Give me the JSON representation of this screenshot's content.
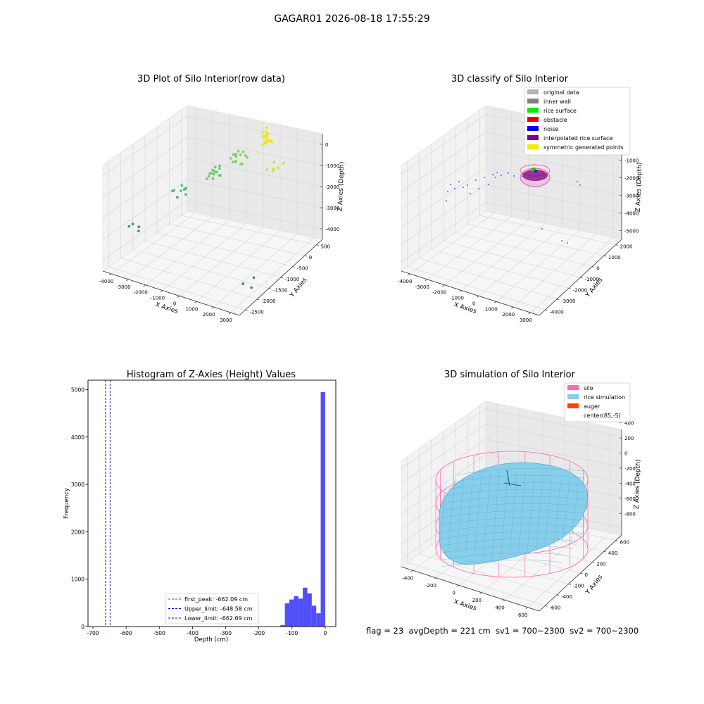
{
  "figure": {
    "suptitle": "GAGAR01 2026-08-18 17:55:29",
    "footer": "flag = 23  avgDepth = 221 cm  sv1 = 700~2300  sv2 = 700~2300"
  },
  "chart_data": [
    {
      "type": "scatter",
      "projection": "3d",
      "title": "3D Plot of Silo Interior(row data)",
      "xlabel": "X Axies",
      "ylabel": "Y Axies",
      "zlabel": "Z Axies (Depth)",
      "xticks": [
        "-4000",
        "-3000",
        "-2000",
        "-1000",
        "0",
        "1000",
        "2000",
        "3000"
      ],
      "yticks": [
        "500",
        "0",
        "-500",
        "-1000",
        "-1500",
        "-2000",
        "-2500"
      ],
      "zticks": [
        "0",
        "-1000",
        "-2000",
        "-3000",
        "-4000"
      ],
      "xlim": [
        -4200,
        3200
      ],
      "ylim": [
        -2700,
        700
      ],
      "zlim": [
        -4500,
        200
      ],
      "colormap": "viridis by depth",
      "clusters": [
        {
          "x": 800,
          "y": 250,
          "z": -150,
          "n": 22,
          "color": "#f0e41e"
        },
        {
          "x": 1900,
          "y": -300,
          "z": -700,
          "n": 6,
          "color": "#c6e22e"
        },
        {
          "x": -200,
          "y": -100,
          "z": -900,
          "n": 16,
          "color": "#7ed25a"
        },
        {
          "x": -1000,
          "y": -500,
          "z": -1500,
          "n": 14,
          "color": "#5ec962"
        },
        {
          "x": -2200,
          "y": -1100,
          "z": -2000,
          "n": 10,
          "color": "#3fbc73"
        },
        {
          "x": -3600,
          "y": -1900,
          "z": -3100,
          "n": 4,
          "color": "#21918c"
        },
        {
          "x": 2500,
          "y": -1700,
          "z": -4200,
          "n": 3,
          "color": "#1f8a70"
        }
      ]
    },
    {
      "type": "scatter",
      "projection": "3d",
      "title": "3D classify of Silo Interior",
      "xlabel": "X Axies",
      "ylabel": "Y Axies",
      "zlabel": "Z Axies (Depth)",
      "xticks": [
        "-4000",
        "-3000",
        "-2000",
        "-1000",
        "0",
        "1000",
        "2000",
        "3000"
      ],
      "yticks": [
        "2000",
        "1000",
        "0",
        "-1000",
        "-2000",
        "-3000",
        "-4000"
      ],
      "zticks": [
        "0",
        "-1000",
        "-2000",
        "-3000",
        "-4000",
        "-5000"
      ],
      "xlim": [
        -4200,
        3200
      ],
      "ylim": [
        -4300,
        2300
      ],
      "zlim": [
        -5500,
        300
      ],
      "legend": [
        {
          "label": "original data",
          "color": "#b3b3b3"
        },
        {
          "label": "inner wall",
          "color": "#808080"
        },
        {
          "label": "rice surface",
          "color": "#00ee00"
        },
        {
          "label": "obstacle",
          "color": "#ee0000"
        },
        {
          "label": "noise",
          "color": "#0000ee"
        },
        {
          "label": "interpolated rice surface",
          "color": "#800080"
        },
        {
          "label": "symmetric generated points",
          "color": "#eeee00"
        }
      ],
      "legend_loc": "upper right"
    },
    {
      "type": "histogram",
      "title": "Histogram of Z-Axies (Height) Values",
      "xlabel": "Depth (cm)",
      "ylabel": "Frequency",
      "xlim": [
        -715,
        32
      ],
      "ylim": [
        0,
        5200
      ],
      "xticks": [
        -700,
        -600,
        -500,
        -400,
        -300,
        -200,
        -100,
        0
      ],
      "yticks": [
        0,
        1000,
        2000,
        3000,
        4000,
        5000
      ],
      "bar_color": "#4f4ffb",
      "bin_width": 13.5,
      "bins": [
        {
          "x0": -135,
          "count": 30
        },
        {
          "x0": -121.5,
          "count": 490
        },
        {
          "x0": -108,
          "count": 570
        },
        {
          "x0": -94.5,
          "count": 640
        },
        {
          "x0": -81,
          "count": 590
        },
        {
          "x0": -67.5,
          "count": 820
        },
        {
          "x0": -54,
          "count": 700
        },
        {
          "x0": -40.5,
          "count": 440
        },
        {
          "x0": -27,
          "count": 280
        },
        {
          "x0": -13.5,
          "count": 4950
        }
      ],
      "vlines": [
        {
          "label": "first_peak: -662.09 cm",
          "x": -662.09,
          "color": "#ff0000"
        },
        {
          "label": "Upper_limit: -648.58 cm",
          "x": -648.58,
          "color": "#0000ff"
        },
        {
          "label": "Lower_limit: -662.09 cm",
          "x": -662.09,
          "color": "#0000ff"
        }
      ],
      "legend_loc": "lower center"
    },
    {
      "type": "surface",
      "projection": "3d",
      "title": "3D simulation of Silo Interior",
      "xlabel": "X Axies",
      "ylabel": "Y Axies",
      "zlabel": "Z Axies (Depth)",
      "xticks": [
        "-400",
        "-200",
        "0",
        "200",
        "400",
        "600"
      ],
      "yticks": [
        "600",
        "400",
        "200",
        "0",
        "-200",
        "-400",
        "-600"
      ],
      "zticks": [
        "400",
        "200",
        "0",
        "-200",
        "-400",
        "-600",
        "-800"
      ],
      "xlim": [
        -500,
        700
      ],
      "ylim": [
        -650,
        650
      ],
      "zlim": [
        -900,
        450
      ],
      "legend": [
        {
          "label": "silo",
          "color": "#ff69b4"
        },
        {
          "label": "rice simulation",
          "color": "#87ceeb"
        },
        {
          "label": "auger",
          "color": "#ff4500"
        },
        {
          "label": "center(85,-5)",
          "color": ""
        }
      ],
      "legend_loc": "upper right"
    }
  ]
}
